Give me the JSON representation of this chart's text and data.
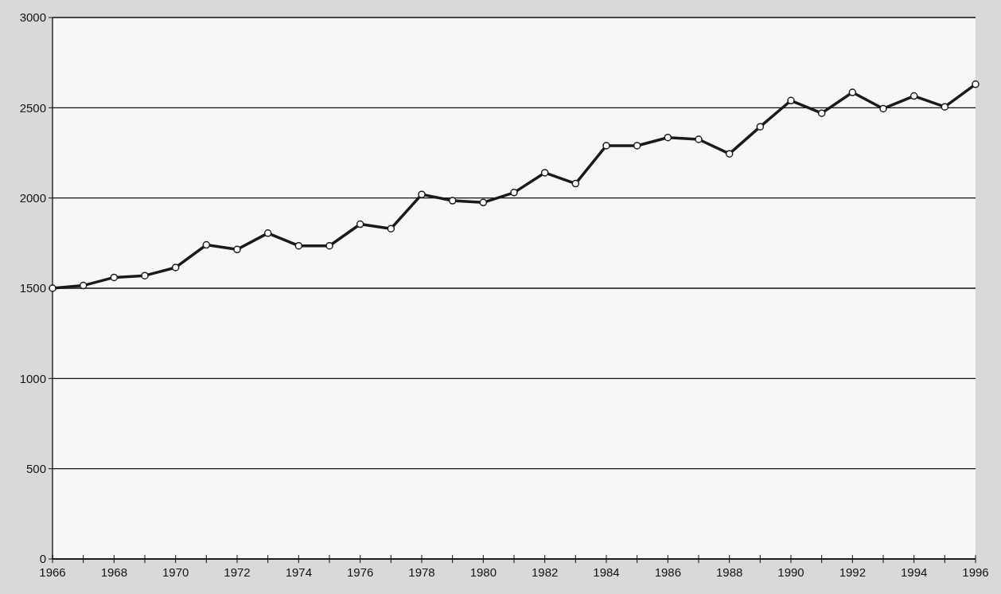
{
  "chart_data": {
    "type": "line",
    "x": [
      1966,
      1967,
      1968,
      1969,
      1970,
      1971,
      1972,
      1973,
      1974,
      1975,
      1976,
      1977,
      1978,
      1979,
      1980,
      1981,
      1982,
      1983,
      1984,
      1985,
      1986,
      1987,
      1988,
      1989,
      1990,
      1991,
      1992,
      1993,
      1994,
      1995,
      1996
    ],
    "series": [
      {
        "color": "#1a1a1a",
        "values": [
          1500,
          1515,
          1560,
          1570,
          1615,
          1740,
          1715,
          1805,
          1735,
          1735,
          1855,
          1830,
          2020,
          1985,
          1975,
          2030,
          2140,
          2080,
          2290,
          2290,
          2335,
          2325,
          2245,
          2395,
          2540,
          2470,
          2585,
          2495,
          2565,
          2505,
          2630
        ]
      }
    ],
    "xlim": [
      1966,
      1996
    ],
    "xticks": [
      1966,
      {
        "value": 1967,
        "label": null
      },
      1968,
      {
        "value": 1969,
        "label": null
      },
      1970,
      {
        "value": 1971,
        "label": null
      },
      1972,
      {
        "value": 1973,
        "label": null
      },
      1974,
      {
        "value": 1975,
        "label": null
      },
      1976,
      {
        "value": 1977,
        "label": null
      },
      1978,
      {
        "value": 1979,
        "label": null
      },
      1980,
      {
        "value": 1981,
        "label": null
      },
      1982,
      {
        "value": 1983,
        "label": null
      },
      1984,
      {
        "value": 1985,
        "label": null
      },
      1986,
      {
        "value": 1987,
        "label": null
      },
      1988,
      {
        "value": 1989,
        "label": null
      },
      1990,
      {
        "value": 1991,
        "label": null
      },
      1992,
      {
        "value": 1993,
        "label": null
      },
      1994,
      {
        "value": 1995,
        "label": null
      },
      1996
    ],
    "ylim": [
      0,
      3000
    ],
    "yticks": [
      0,
      500,
      1000,
      1500,
      2000,
      2500,
      3000
    ],
    "grid": "y",
    "marker": "circle",
    "line_style": "solid"
  }
}
